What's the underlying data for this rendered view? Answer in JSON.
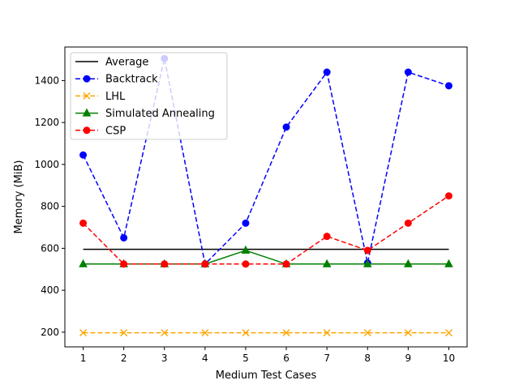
{
  "chart_data": {
    "type": "line",
    "title": "",
    "xlabel": "Medium Test Cases",
    "ylabel": "Memory (MiB)",
    "x": [
      1,
      2,
      3,
      4,
      5,
      6,
      7,
      8,
      9,
      10
    ],
    "x_ticks": [
      "1",
      "2",
      "3",
      "4",
      "5",
      "6",
      "7",
      "8",
      "9",
      "10"
    ],
    "xlim": [
      0.55,
      10.45
    ],
    "ylim": [
      130,
      1560
    ],
    "y_ticks": [
      200,
      400,
      600,
      800,
      1000,
      1200,
      1400
    ],
    "grid": false,
    "legend_position": "top-left",
    "series": [
      {
        "name": "Average",
        "color": "#000000",
        "dash": "solid",
        "marker": "none",
        "values": [
          595,
          595,
          595,
          595,
          595,
          595,
          595,
          595,
          595,
          595
        ]
      },
      {
        "name": "Backtrack",
        "color": "#0000ff",
        "dash": "dashed",
        "marker": "circle",
        "values": [
          1045,
          650,
          1505,
          525,
          720,
          1178,
          1440,
          530,
          1440,
          1375
        ]
      },
      {
        "name": "LHL",
        "color": "#ffa500",
        "dash": "dashed",
        "marker": "x",
        "values": [
          197,
          197,
          197,
          197,
          197,
          197,
          197,
          197,
          197,
          197
        ]
      },
      {
        "name": "Simulated Annealing",
        "color": "#008000",
        "dash": "solid",
        "marker": "triangle",
        "values": [
          525,
          525,
          525,
          525,
          590,
          525,
          525,
          525,
          525,
          525
        ]
      },
      {
        "name": "CSP",
        "color": "#ff0000",
        "dash": "dashed",
        "marker": "circle",
        "values": [
          720,
          525,
          525,
          525,
          525,
          525,
          657,
          590,
          720,
          850
        ]
      }
    ]
  }
}
